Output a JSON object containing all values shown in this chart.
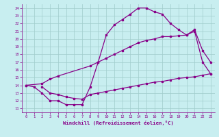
{
  "background_color": "#c8eef0",
  "grid_color": "#a0cccc",
  "line_color": "#880088",
  "xlabel": "Windchill (Refroidissement éolien,°C)",
  "xlim": [
    -0.5,
    23.5
  ],
  "ylim": [
    10.5,
    24.5
  ],
  "xticks": [
    0,
    1,
    2,
    3,
    4,
    5,
    6,
    7,
    8,
    9,
    10,
    11,
    12,
    13,
    14,
    15,
    16,
    17,
    18,
    19,
    20,
    21,
    22,
    23
  ],
  "yticks": [
    11,
    12,
    13,
    14,
    15,
    16,
    17,
    18,
    19,
    20,
    21,
    22,
    23,
    24
  ],
  "line1_x": [
    0,
    1,
    2,
    3,
    4,
    5,
    6,
    7,
    8,
    9,
    10,
    11,
    12,
    13,
    14,
    15,
    16,
    17,
    18,
    19,
    20,
    21,
    22,
    23
  ],
  "line1_y": [
    14.0,
    13.8,
    13.0,
    12.0,
    12.0,
    11.5,
    11.5,
    11.5,
    13.8,
    17.0,
    20.5,
    21.8,
    22.5,
    23.2,
    24.0,
    24.0,
    23.5,
    23.2,
    22.0,
    21.2,
    20.5,
    21.2,
    18.5,
    17.0
  ],
  "line2_x": [
    0,
    2,
    3,
    4,
    8,
    9,
    10,
    11,
    12,
    13,
    14,
    15,
    16,
    17,
    18,
    19,
    20,
    21,
    22,
    23
  ],
  "line2_y": [
    14.0,
    14.2,
    14.8,
    15.2,
    16.5,
    17.0,
    17.5,
    18.0,
    18.5,
    19.0,
    19.5,
    19.8,
    20.0,
    20.3,
    20.3,
    20.4,
    20.5,
    21.0,
    17.0,
    15.5
  ],
  "line3_x": [
    2,
    3,
    4,
    5,
    6,
    7,
    8,
    9,
    10,
    11,
    12,
    13,
    14,
    15,
    16,
    17,
    18,
    19,
    20,
    21,
    22,
    23
  ],
  "line3_y": [
    13.8,
    13.0,
    12.8,
    12.5,
    12.3,
    12.2,
    12.8,
    13.0,
    13.2,
    13.4,
    13.6,
    13.8,
    14.0,
    14.2,
    14.4,
    14.5,
    14.7,
    14.9,
    15.0,
    15.1,
    15.3,
    15.5
  ]
}
